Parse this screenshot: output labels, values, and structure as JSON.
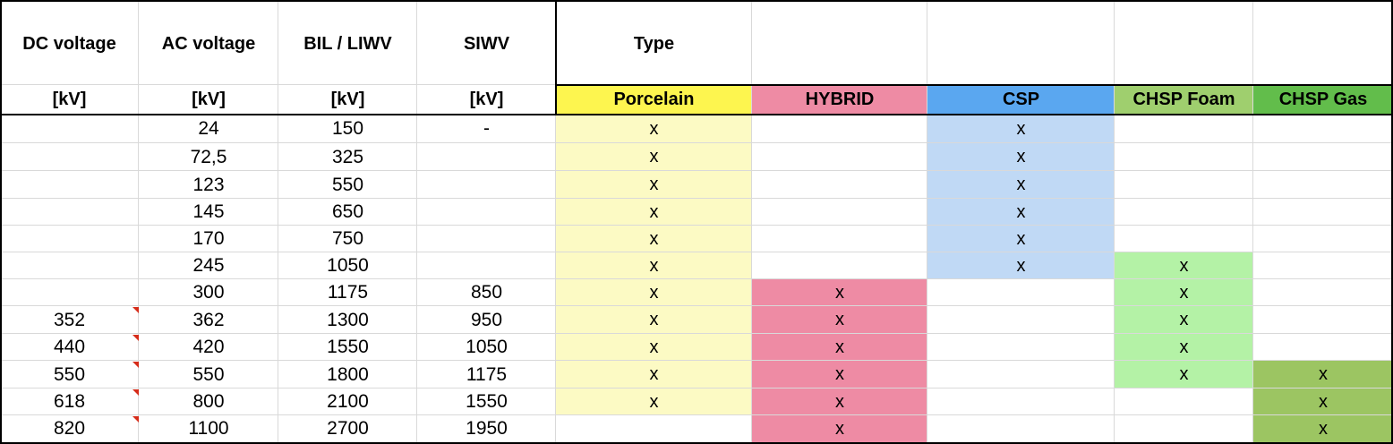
{
  "headers": {
    "dc": {
      "title": "DC voltage",
      "unit": "[kV]"
    },
    "ac": {
      "title": "AC voltage",
      "unit": "[kV]"
    },
    "bil": {
      "title": "BIL / LIWV",
      "unit": "[kV]"
    },
    "siwv": {
      "title": "SIWV",
      "unit": "[kV]"
    },
    "type": "Type"
  },
  "types": [
    {
      "label": "Porcelain",
      "header_color": "#fdf54f",
      "fill_color": "#fcfac4"
    },
    {
      "label": "HYBRID",
      "header_color": "#ee8ba4",
      "fill_color": "#ee8ba4"
    },
    {
      "label": "CSP",
      "header_color": "#5aa7f0",
      "fill_color": "#c0d9f5"
    },
    {
      "label": "CHSP Foam",
      "header_color": "#9fcf6e",
      "fill_color": "#b4f2a6"
    },
    {
      "label": "CHSP Gas",
      "header_color": "#62bd4b",
      "fill_color": "#9cc562"
    }
  ],
  "rows": [
    {
      "dc": "",
      "ac": "24",
      "bil": "150",
      "siwv": "-",
      "marks": [
        "x",
        "",
        "x",
        "",
        ""
      ]
    },
    {
      "dc": "",
      "ac": "72,5",
      "bil": "325",
      "siwv": "",
      "marks": [
        "x",
        "",
        "x",
        "",
        ""
      ]
    },
    {
      "dc": "",
      "ac": "123",
      "bil": "550",
      "siwv": "",
      "marks": [
        "x",
        "",
        "x",
        "",
        ""
      ]
    },
    {
      "dc": "",
      "ac": "145",
      "bil": "650",
      "siwv": "",
      "marks": [
        "x",
        "",
        "x",
        "",
        ""
      ]
    },
    {
      "dc": "",
      "ac": "170",
      "bil": "750",
      "siwv": "",
      "marks": [
        "x",
        "",
        "x",
        "",
        ""
      ]
    },
    {
      "dc": "",
      "ac": "245",
      "bil": "1050",
      "siwv": "",
      "marks": [
        "x",
        "",
        "x",
        "x",
        ""
      ]
    },
    {
      "dc": "",
      "ac": "300",
      "bil": "1175",
      "siwv": "850",
      "marks": [
        "x",
        "x",
        "",
        "x",
        ""
      ]
    },
    {
      "dc": "352",
      "ac": "362",
      "bil": "1300",
      "siwv": "950",
      "marks": [
        "x",
        "x",
        "",
        "x",
        ""
      ]
    },
    {
      "dc": "440",
      "ac": "420",
      "bil": "1550",
      "siwv": "1050",
      "marks": [
        "x",
        "x",
        "",
        "x",
        ""
      ]
    },
    {
      "dc": "550",
      "ac": "550",
      "bil": "1800",
      "siwv": "1175",
      "marks": [
        "x",
        "x",
        "",
        "x",
        "x"
      ]
    },
    {
      "dc": "618",
      "ac": "800",
      "bil": "2100",
      "siwv": "1550",
      "marks": [
        "x",
        "x",
        "",
        "",
        "x"
      ]
    },
    {
      "dc": "820",
      "ac": "1100",
      "bil": "2700",
      "siwv": "1950",
      "marks": [
        "",
        "x",
        "",
        "",
        "x"
      ]
    }
  ]
}
